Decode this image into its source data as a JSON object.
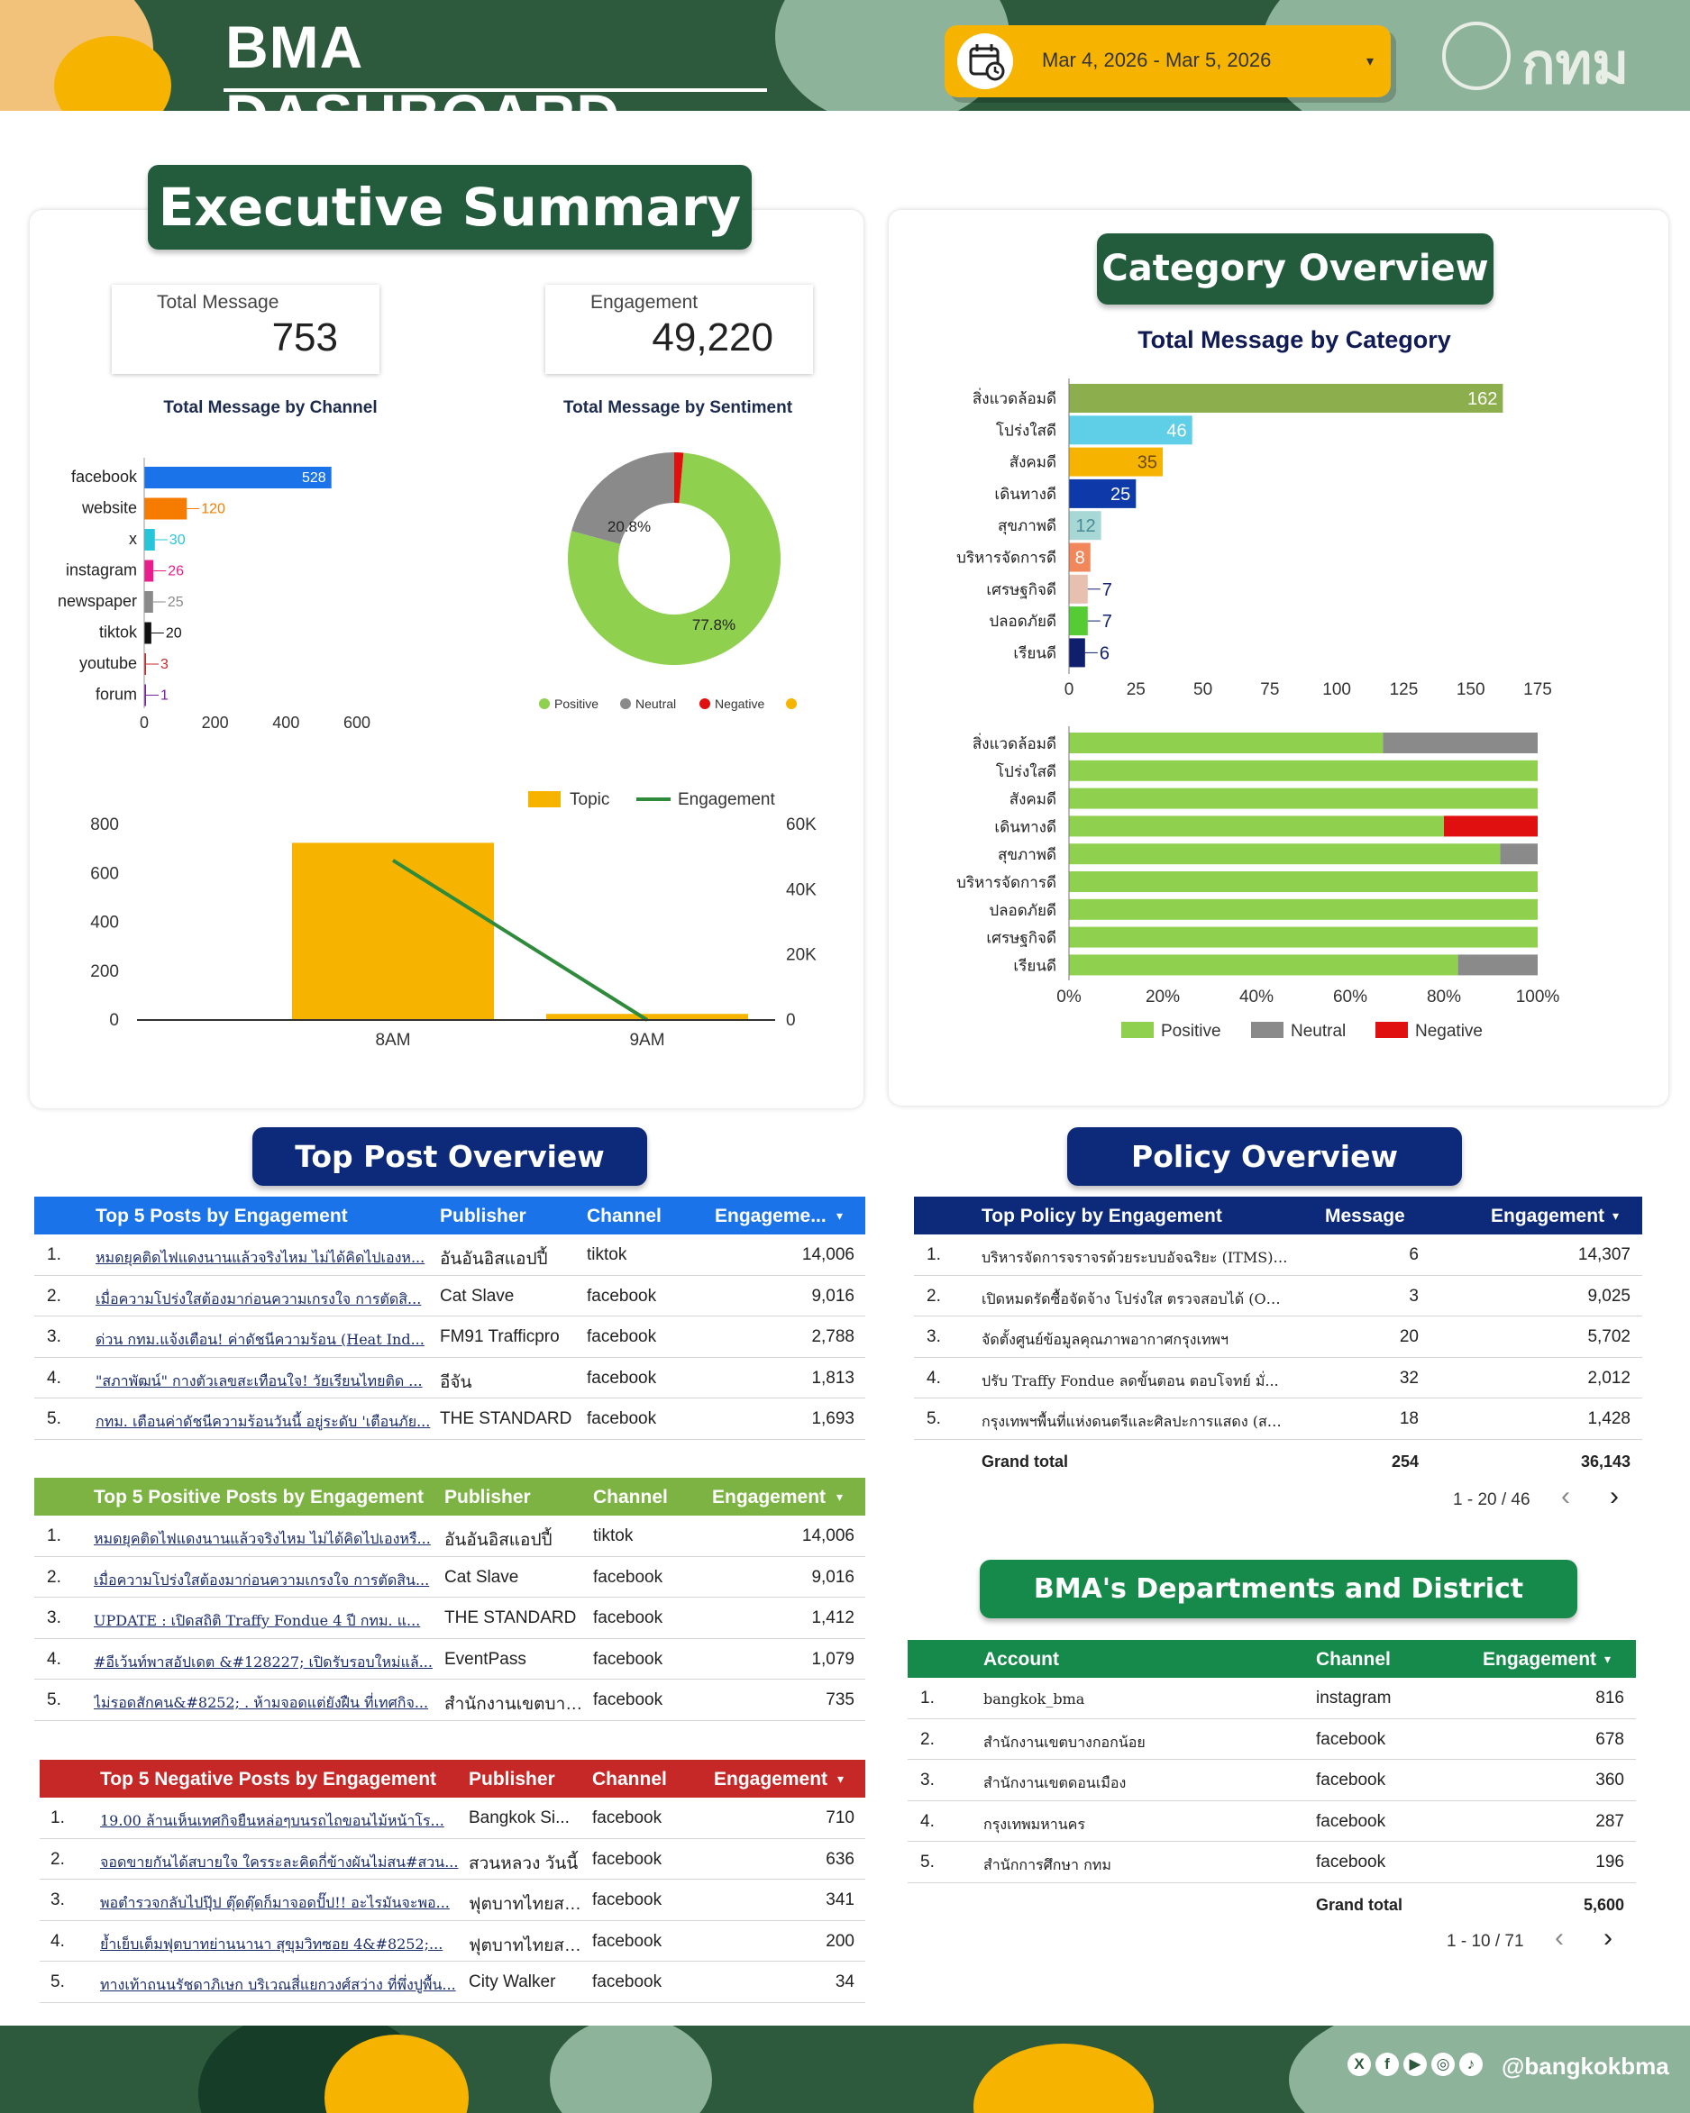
{
  "header": {
    "title": "BMA DASHBOARD",
    "date_range": "Mar 4, 2026 - Mar 5, 2026",
    "logo_text": "กทม"
  },
  "executive_summary": {
    "title": "Executive Summary",
    "kpis": {
      "total_message_label": "Total Message",
      "total_message_value": "753",
      "engagement_label": "Engagement",
      "engagement_value": "49,220"
    }
  },
  "category_overview": {
    "title": "Category Overview",
    "subtitle": "Total Message by Category"
  },
  "top_post_overview": {
    "title": "Top Post Overview"
  },
  "policy_overview": {
    "title": "Policy Overview"
  },
  "departments": {
    "title": "BMA's Departments and District Offices"
  },
  "chart_data": [
    {
      "id": "channel",
      "type": "bar",
      "orientation": "horizontal",
      "title": "Total Message by Channel",
      "categories": [
        "facebook",
        "website",
        "x",
        "instagram",
        "newspaper",
        "tiktok",
        "youtube",
        "forum"
      ],
      "values": [
        528,
        120,
        30,
        26,
        25,
        20,
        3,
        1
      ],
      "colors": [
        "#1a73e8",
        "#f57c00",
        "#26c6da",
        "#e91e8c",
        "#8a8a8a",
        "#111111",
        "#c62828",
        "#7b1fa2"
      ],
      "xlim": [
        0,
        600
      ],
      "ticks": [
        "0",
        "200",
        "400",
        "600"
      ]
    },
    {
      "id": "sentiment",
      "type": "pie",
      "title": "Total Message by Sentiment",
      "labels": [
        "Positive",
        "Neutral",
        "Negative",
        ""
      ],
      "values": [
        77.8,
        20.8,
        1.4,
        0
      ],
      "slice_labels": [
        "77.8%",
        "20.8%",
        "",
        ""
      ],
      "colors": [
        "#8fd14f",
        "#8a8a8a",
        "#e01010",
        "#f6b400"
      ]
    },
    {
      "id": "topic_engagement",
      "type": "bar",
      "title": "",
      "categories": [
        "8AM",
        "9AM"
      ],
      "series": [
        {
          "name": "Topic",
          "type": "bar",
          "axis": "left",
          "values": [
            725,
            25
          ],
          "color": "#f6b400"
        },
        {
          "name": "Engagement",
          "type": "line",
          "axis": "right",
          "values": [
            49000,
            0
          ],
          "color": "#2e8b3c"
        }
      ],
      "ylim_left": [
        0,
        800
      ],
      "ylim_right": [
        0,
        60000
      ],
      "left_ticks": [
        "0",
        "200",
        "400",
        "600",
        "800"
      ],
      "right_ticks": [
        "0",
        "20K",
        "40K",
        "60K"
      ]
    },
    {
      "id": "category",
      "type": "bar",
      "orientation": "horizontal",
      "title": "Total Message by Category",
      "categories": [
        "สิ่งแวดล้อมดี",
        "โปร่งใสดี",
        "สังคมดี",
        "เดินทางดี",
        "สุขภาพดี",
        "บริหารจัดการดี",
        "เศรษฐกิจดี",
        "ปลอดภัยดี",
        "เรียนดี"
      ],
      "values": [
        162,
        46,
        35,
        25,
        12,
        8,
        7,
        7,
        6
      ],
      "colors": [
        "#8cae4c",
        "#5ecfe6",
        "#f6b400",
        "#0d3aa8",
        "#a8d8d6",
        "#f2875b",
        "#e8c0b0",
        "#55cc33",
        "#0f1f6e"
      ],
      "xlim": [
        0,
        175
      ],
      "ticks": [
        "0",
        "25",
        "50",
        "75",
        "100",
        "125",
        "150",
        "175"
      ]
    },
    {
      "id": "category_sentiment",
      "type": "bar",
      "orientation": "horizontal",
      "stacked": "percent",
      "title": "",
      "categories": [
        "สิ่งแวดล้อมดี",
        "โปร่งใสดี",
        "สังคมดี",
        "เดินทางดี",
        "สุขภาพดี",
        "บริหารจัดการดี",
        "ปลอดภัยดี",
        "เศรษฐกิจดี",
        "เรียนดี"
      ],
      "series": [
        {
          "name": "Positive",
          "values": [
            67,
            100,
            100,
            80,
            92,
            100,
            100,
            100,
            83
          ],
          "color": "#8fd14f"
        },
        {
          "name": "Neutral",
          "values": [
            33,
            0,
            0,
            0,
            8,
            0,
            0,
            0,
            17
          ],
          "color": "#8a8a8a"
        },
        {
          "name": "Negative",
          "values": [
            0,
            0,
            0,
            20,
            0,
            0,
            0,
            0,
            0
          ],
          "color": "#e01010"
        }
      ],
      "ticks": [
        "0%",
        "20%",
        "40%",
        "60%",
        "80%",
        "100%"
      ]
    }
  ],
  "tables": {
    "top5": {
      "headers": [
        "Top 5 Posts by Engagement",
        "Publisher",
        "Channel",
        "Engageme...",
        "▾"
      ],
      "rows": [
        [
          "1.",
          "หมดยุคติดไฟแดงนานแล้วจริงไหม ไม่ได้คิดไปเองห...",
          "อันอันอิสแอปปี้",
          "tiktok",
          "14,006"
        ],
        [
          "2.",
          "เมื่อความโปร่งใสต้องมาก่อนความเกรงใจ การตัดสิ...",
          "Cat Slave",
          "facebook",
          "9,016"
        ],
        [
          "3.",
          "ด่วน กทม.แจ้งเตือน! ค่าดัชนีความร้อน (Heat Ind...",
          "FM91 Trafficpro",
          "facebook",
          "2,788"
        ],
        [
          "4.",
          "\"สภาพัฒน์\" กางตัวเลขสะเทือนใจ! วัยเรียนไทยติด ...",
          "อีจัน",
          "facebook",
          "1,813"
        ],
        [
          "5.",
          "กทม. เตือนค่าดัชนีความร้อนวันนี้ อยู่ระดับ 'เตือนภัย...",
          "THE STANDARD",
          "facebook",
          "1,693"
        ]
      ]
    },
    "positive": {
      "headers": [
        "Top 5 Positive Posts by Engagement",
        "Publisher",
        "Channel",
        "Engagement",
        "▾"
      ],
      "rows": [
        [
          "1.",
          "หมดยุคติดไฟแดงนานแล้วจริงไหม ไม่ได้คิดไปเองหรื...",
          "อันอันอิสแอปปี้",
          "tiktok",
          "14,006"
        ],
        [
          "2.",
          "เมื่อความโปร่งใสต้องมาก่อนความเกรงใจ การตัดสิน...",
          "Cat Slave",
          "facebook",
          "9,016"
        ],
        [
          "3.",
          "UPDATE : เปิดสถิติ Traffy Fondue 4 ปี กทม. แ...",
          "THE STANDARD",
          "facebook",
          "1,412"
        ],
        [
          "4.",
          "#อีเว้นท์พาสอัปเดต &#128227; เปิดรับรอบใหม่แล้...",
          "EventPass",
          "facebook",
          "1,079"
        ],
        [
          "5.",
          "ไม่รอดสักคน&#8252; . ห้ามจอดแต่ยังฝืน ที่เทศกิจ...",
          "สำนักงานเขตบางก...",
          "facebook",
          "735"
        ]
      ]
    },
    "negative": {
      "headers": [
        "Top 5 Negative Posts by Engagement",
        "Publisher",
        "Channel",
        "Engagement",
        "▾"
      ],
      "rows": [
        [
          "1.",
          "19.00 ล้านเห็นเทศกิจยืนหล่อๆบนรถไถขอนไม้หน้าโร...",
          "Bangkok Si...",
          "facebook",
          "710"
        ],
        [
          "2.",
          "จอดขายกันได้สบายใจ ใครระละคิดกี่ข้างผันไม่สน#สวน...",
          "สวนหลวง วันนี้",
          "facebook",
          "636"
        ],
        [
          "3.",
          "พอตำรวจกลับไปปุ๊ป ตุ๊ดตุ๊ดก็มาจอดปั๊ป!! อะไรมันจะพอ...",
          "ฟุตบาทไทยสไ...",
          "facebook",
          "341"
        ],
        [
          "4.",
          "ย้ำเย็บเต็มฟุตบาทย่านนานา สุขุมวิทซอย 4&#8252;...",
          "ฟุตบาทไทยสไ...",
          "facebook",
          "200"
        ],
        [
          "5.",
          "ทางเท้าถนนรัชดาภิเษก บริเวณสี่แยกวงศ์สว่าง ที่พึ่งปูพื้น...",
          "City Walker",
          "facebook",
          "34"
        ]
      ]
    },
    "policy": {
      "headers": [
        "Top Policy by Engagement",
        "Message",
        "Engagement",
        "▾"
      ],
      "rows": [
        [
          "1.",
          "บริหารจัดการจราจรด้วยระบบอัจฉริยะ (ITMS) ...",
          "6",
          "14,307"
        ],
        [
          "2.",
          "เปิดหมดรัดซื้อจัดจ้าง โปร่งใส ตรวจสอบได้ (Op...",
          "3",
          "9,025"
        ],
        [
          "3.",
          "จัดตั้งศูนย์ข้อมูลคุณภาพอากาศกรุงเทพฯ",
          "20",
          "5,702"
        ],
        [
          "4.",
          "ปรับ Traffy Fondue ลดขั้นตอน ตอบโจทย์ มั่...",
          "32",
          "2,012"
        ],
        [
          "5.",
          "กรุงเทพฯพื้นที่แห่งดนตรีและศิลปะการแสดง (สต...",
          "18",
          "1,428"
        ]
      ],
      "grand_total_label": "Grand total",
      "grand_total_message": "254",
      "grand_total_engagement": "36,143",
      "pager": "1 - 20 / 46"
    },
    "departments": {
      "headers": [
        "Account",
        "Channel",
        "Engagement",
        "▾"
      ],
      "rows": [
        [
          "1.",
          "bangkok_bma",
          "instagram",
          "816"
        ],
        [
          "2.",
          "สำนักงานเขตบางกอกน้อย",
          "facebook",
          "678"
        ],
        [
          "3.",
          "สำนักงานเขตดอนเมือง",
          "facebook",
          "360"
        ],
        [
          "4.",
          "กรุงเทพมหานคร",
          "facebook",
          "287"
        ],
        [
          "5.",
          "สำนักการศึกษา กทม",
          "facebook",
          "196"
        ]
      ],
      "grand_total_label": "Grand total",
      "grand_total_engagement": "5,600",
      "pager": "1 - 10 / 71"
    }
  },
  "footer": {
    "handle": "@bangkokbma",
    "social_icons": [
      "x-icon",
      "facebook-icon",
      "youtube-icon",
      "instagram-icon",
      "tiktok-icon"
    ]
  }
}
